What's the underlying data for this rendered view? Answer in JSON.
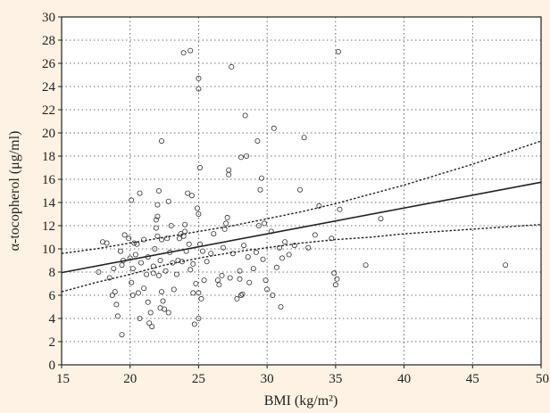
{
  "chart_data": {
    "type": "scatter",
    "xlabel": "BMI (kg/m²)",
    "ylabel": "α-tocopherol (μg/ml)",
    "xlim": [
      15,
      50
    ],
    "ylim": [
      0,
      30
    ],
    "xticks": [
      15,
      20,
      25,
      30,
      35,
      40,
      45,
      50
    ],
    "yticks": [
      0,
      2,
      4,
      6,
      8,
      10,
      12,
      14,
      16,
      18,
      20,
      22,
      24,
      26,
      28,
      30
    ],
    "grid": true,
    "colors": {
      "background": "#fdf2e3",
      "plot": "#ffffff",
      "ink": "#222222",
      "grid": "#444444"
    },
    "points": [
      [
        18.0,
        10.6
      ],
      [
        18.3,
        10.5
      ],
      [
        17.7,
        8.0
      ],
      [
        18.5,
        7.5
      ],
      [
        18.8,
        8.3
      ],
      [
        18.9,
        6.3
      ],
      [
        18.7,
        6.0
      ],
      [
        19.0,
        5.2
      ],
      [
        19.1,
        4.2
      ],
      [
        19.4,
        2.6
      ],
      [
        19.5,
        9.0
      ],
      [
        19.3,
        9.8
      ],
      [
        19.6,
        11.2
      ],
      [
        19.4,
        8.6
      ],
      [
        19.9,
        10.9
      ],
      [
        20.0,
        9.2
      ],
      [
        20.2,
        8.3
      ],
      [
        20.3,
        10.5
      ],
      [
        20.5,
        10.4
      ],
      [
        20.4,
        9.5
      ],
      [
        20.1,
        7.1
      ],
      [
        20.6,
        6.2
      ],
      [
        20.2,
        6.0
      ],
      [
        20.7,
        4.0
      ],
      [
        20.8,
        8.8
      ],
      [
        20.7,
        14.8
      ],
      [
        20.1,
        14.2
      ],
      [
        21.0,
        10.8
      ],
      [
        21.3,
        9.3
      ],
      [
        21.2,
        7.8
      ],
      [
        21.0,
        6.6
      ],
      [
        21.3,
        5.4
      ],
      [
        21.4,
        3.6
      ],
      [
        21.6,
        3.3
      ],
      [
        21.5,
        4.5
      ],
      [
        21.7,
        7.9
      ],
      [
        21.8,
        10.0
      ],
      [
        21.9,
        12.5
      ],
      [
        21.9,
        11.8
      ],
      [
        21.7,
        8.5
      ],
      [
        22.0,
        12.8
      ],
      [
        22.0,
        13.8
      ],
      [
        22.1,
        15.0
      ],
      [
        22.0,
        11.1
      ],
      [
        22.2,
        9.0
      ],
      [
        22.3,
        10.8
      ],
      [
        22.1,
        7.7
      ],
      [
        22.3,
        6.3
      ],
      [
        22.4,
        5.5
      ],
      [
        22.2,
        4.9
      ],
      [
        22.5,
        4.8
      ],
      [
        22.8,
        4.5
      ],
      [
        22.6,
        8.1
      ],
      [
        22.9,
        9.7
      ],
      [
        22.7,
        10.9
      ],
      [
        23.0,
        12.0
      ],
      [
        22.3,
        19.3
      ],
      [
        22.8,
        14.1
      ],
      [
        23.1,
        8.8
      ],
      [
        23.2,
        6.5
      ],
      [
        23.4,
        7.8
      ],
      [
        23.6,
        10.9
      ],
      [
        23.7,
        11.3
      ],
      [
        23.8,
        8.9
      ],
      [
        23.9,
        11.1
      ],
      [
        23.5,
        9.0
      ],
      [
        24.0,
        11.5
      ],
      [
        24.0,
        12.1
      ],
      [
        23.9,
        26.9
      ],
      [
        24.4,
        27.1
      ],
      [
        24.2,
        14.8
      ],
      [
        24.5,
        14.6
      ],
      [
        24.3,
        10.4
      ],
      [
        24.1,
        9.8
      ],
      [
        24.6,
        8.7
      ],
      [
        24.4,
        8.2
      ],
      [
        24.8,
        7.0
      ],
      [
        24.6,
        6.2
      ],
      [
        24.7,
        3.5
      ],
      [
        25.0,
        4.0
      ],
      [
        25.2,
        5.7
      ],
      [
        25.0,
        6.2
      ],
      [
        25.4,
        7.3
      ],
      [
        25.3,
        9.8
      ],
      [
        25.1,
        10.4
      ],
      [
        25.0,
        13.0
      ],
      [
        24.9,
        13.5
      ],
      [
        25.1,
        17.0
      ],
      [
        25.0,
        23.8
      ],
      [
        25.0,
        24.7
      ],
      [
        25.6,
        8.9
      ],
      [
        25.9,
        9.6
      ],
      [
        26.1,
        11.3
      ],
      [
        26.4,
        7.3
      ],
      [
        26.5,
        6.9
      ],
      [
        26.7,
        7.7
      ],
      [
        26.8,
        10.1
      ],
      [
        26.9,
        11.7
      ],
      [
        27.0,
        12.2
      ],
      [
        27.1,
        12.7
      ],
      [
        27.2,
        16.4
      ],
      [
        27.2,
        16.8
      ],
      [
        27.4,
        25.7
      ],
      [
        27.5,
        9.6
      ],
      [
        27.3,
        7.5
      ],
      [
        27.8,
        5.7
      ],
      [
        28.0,
        7.4
      ],
      [
        28.1,
        6.0
      ],
      [
        28.2,
        6.1
      ],
      [
        28.0,
        8.1
      ],
      [
        28.3,
        10.3
      ],
      [
        28.1,
        17.9
      ],
      [
        28.5,
        18.0
      ],
      [
        28.4,
        21.5
      ],
      [
        28.6,
        9.3
      ],
      [
        28.7,
        7.1
      ],
      [
        29.0,
        8.3
      ],
      [
        29.2,
        9.7
      ],
      [
        29.4,
        12.0
      ],
      [
        29.3,
        19.3
      ],
      [
        29.5,
        15.1
      ],
      [
        29.6,
        16.1
      ],
      [
        29.8,
        12.2
      ],
      [
        29.7,
        9.1
      ],
      [
        29.9,
        7.3
      ],
      [
        30.0,
        6.5
      ],
      [
        30.3,
        11.5
      ],
      [
        30.5,
        20.4
      ],
      [
        30.4,
        6.0
      ],
      [
        30.7,
        8.4
      ],
      [
        30.9,
        10.1
      ],
      [
        31.1,
        9.2
      ],
      [
        31.3,
        10.6
      ],
      [
        31.0,
        5.0
      ],
      [
        31.6,
        9.5
      ],
      [
        32.0,
        10.3
      ],
      [
        32.4,
        15.1
      ],
      [
        32.7,
        19.6
      ],
      [
        33.0,
        10.1
      ],
      [
        33.5,
        11.2
      ],
      [
        33.8,
        13.7
      ],
      [
        34.7,
        10.9
      ],
      [
        34.9,
        7.9
      ],
      [
        35.1,
        7.4
      ],
      [
        35.0,
        6.9
      ],
      [
        35.2,
        27.0
      ],
      [
        35.3,
        13.4
      ],
      [
        37.2,
        8.6
      ],
      [
        38.3,
        12.6
      ],
      [
        47.4,
        8.6
      ]
    ],
    "fit_line": {
      "x": [
        15,
        50
      ],
      "y": [
        7.95,
        15.75
      ]
    },
    "ci_upper": {
      "x": [
        15,
        17.5,
        20,
        22.5,
        25,
        27.5,
        30,
        32.5,
        35,
        37.5,
        40,
        42.5,
        45,
        47.5,
        50
      ],
      "y": [
        9.6,
        10.0,
        10.5,
        11.0,
        11.5,
        12.0,
        12.6,
        13.2,
        13.9,
        14.7,
        15.5,
        16.4,
        17.3,
        18.3,
        19.3
      ]
    },
    "ci_lower": {
      "x": [
        15,
        17.5,
        20,
        22.5,
        25,
        27.5,
        30,
        32.5,
        35,
        37.5,
        40,
        42.5,
        45,
        47.5,
        50
      ],
      "y": [
        6.3,
        7.1,
        7.8,
        8.6,
        9.2,
        9.7,
        10.1,
        10.5,
        10.8,
        11.0,
        11.3,
        11.5,
        11.7,
        11.9,
        12.1
      ]
    }
  }
}
